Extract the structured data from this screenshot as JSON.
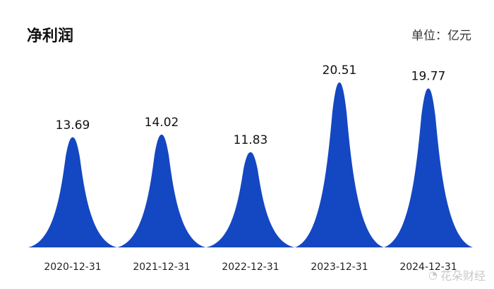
{
  "title": "净利润",
  "unit_label": "单位：亿元",
  "watermark": "花朵财经",
  "colors": {
    "peak_fill": "#1447c2",
    "label_text": "#111111",
    "axis_text": "#222222"
  },
  "chart_data": {
    "type": "area",
    "title": "净利润",
    "unit": "单位：亿元",
    "categories": [
      "2020-12-31",
      "2021-12-31",
      "2022-12-31",
      "2023-12-31",
      "2024-12-31"
    ],
    "series": [
      {
        "values": [
          13.69,
          14.02,
          11.83,
          20.51,
          19.77
        ],
        "labels": [
          "13.69",
          "14.02",
          "11.83",
          "20.51",
          "19.77"
        ]
      }
    ],
    "ylim": [
      0,
      22
    ],
    "grid": false,
    "legend": "none"
  }
}
